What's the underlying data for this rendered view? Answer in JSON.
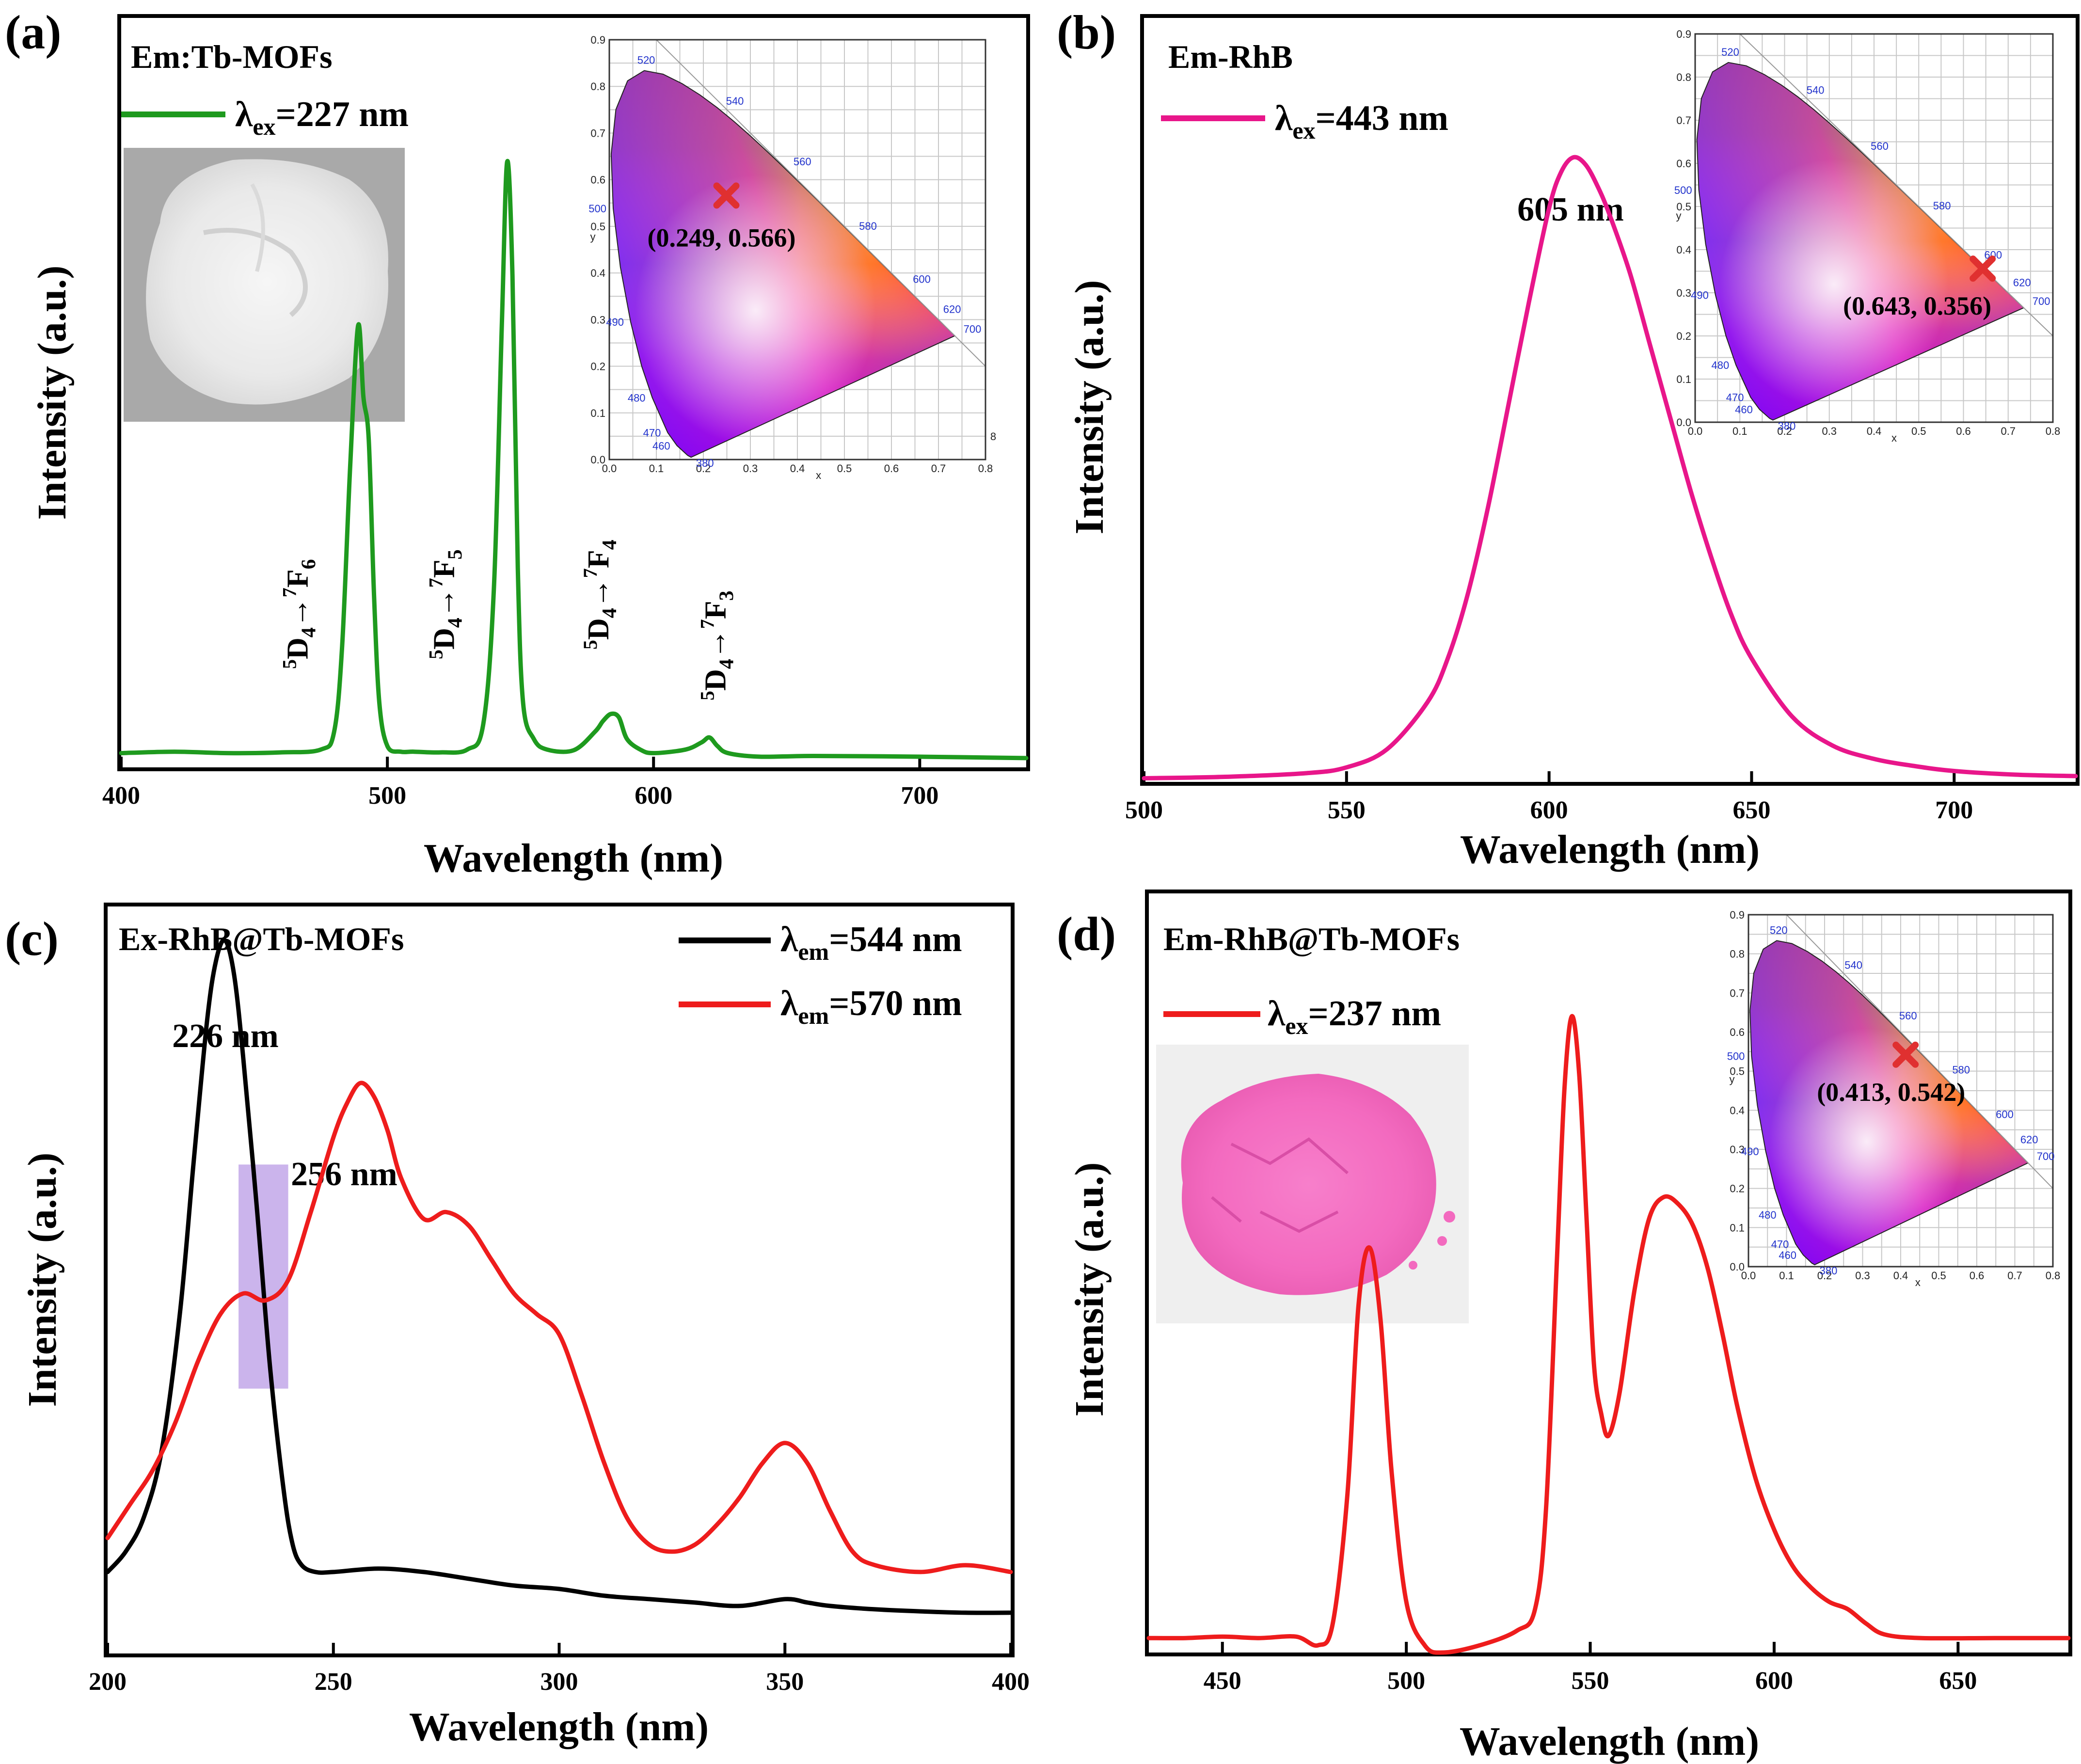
{
  "chart_data": [
    {
      "panel": "(a)",
      "type": "line",
      "title": "Em:Tb-MOFs",
      "xlabel": "Wavelength (nm)",
      "ylabel": "Intensity (a.u.)",
      "xlim": [
        400,
        740
      ],
      "ylim": [
        0,
        1.05
      ],
      "xticks": [
        400,
        500,
        600,
        700
      ],
      "series": [
        {
          "name": "λex=227 nm",
          "legend_main": "λ",
          "legend_sub": "ex",
          "legend_rest": "=227 nm",
          "color": "#1e9a1e",
          "x": [
            400,
            420,
            440,
            460,
            475,
            480,
            483,
            486,
            489,
            491,
            493,
            495,
            497,
            500,
            505,
            510,
            520,
            530,
            536,
            540,
            543,
            545,
            547,
            549,
            551,
            555,
            560,
            570,
            578,
            581,
            584,
            587,
            590,
            595,
            600,
            612,
            618,
            621,
            624,
            628,
            640,
            660,
            700,
            740
          ],
          "y": [
            0.02,
            0.022,
            0.02,
            0.021,
            0.025,
            0.05,
            0.17,
            0.42,
            0.62,
            0.52,
            0.46,
            0.24,
            0.09,
            0.03,
            0.022,
            0.022,
            0.021,
            0.025,
            0.06,
            0.25,
            0.62,
            0.85,
            0.69,
            0.28,
            0.09,
            0.04,
            0.025,
            0.024,
            0.05,
            0.065,
            0.075,
            0.07,
            0.04,
            0.025,
            0.02,
            0.025,
            0.035,
            0.042,
            0.03,
            0.02,
            0.015,
            0.016,
            0.015,
            0.013
          ]
        }
      ],
      "annotations": [
        {
          "label": "5D4→7F6",
          "x": 470
        },
        {
          "label": "5D4→7F5",
          "x": 525
        },
        {
          "label": "5D4→7F4",
          "x": 583
        },
        {
          "label": "5D4→7F3",
          "x": 627
        }
      ],
      "cie": {
        "coord_label": "(0.249, 0.566)",
        "x": 0.249,
        "y": 0.566,
        "extra_tick": "8"
      }
    },
    {
      "panel": "(b)",
      "type": "line",
      "title": "Em-RhB",
      "xlabel": "Wavelength (nm)",
      "ylabel": "Intensity (a.u.)",
      "xlim": [
        500,
        730
      ],
      "ylim": [
        0,
        1.05
      ],
      "xticks": [
        500,
        550,
        600,
        650,
        700
      ],
      "peak_label": "605 nm",
      "series": [
        {
          "name": "λex=443 nm",
          "legend_main": "λ",
          "legend_sub": "ex",
          "legend_rest": "=443 nm",
          "color": "#e8168a",
          "x": [
            500,
            520,
            540,
            550,
            560,
            570,
            575,
            580,
            585,
            590,
            595,
            600,
            603,
            606,
            609,
            612,
            615,
            620,
            625,
            630,
            635,
            640,
            645,
            650,
            660,
            670,
            680,
            690,
            700,
            715,
            730
          ],
          "y": [
            0.005,
            0.007,
            0.012,
            0.02,
            0.045,
            0.11,
            0.17,
            0.26,
            0.38,
            0.52,
            0.66,
            0.79,
            0.84,
            0.86,
            0.85,
            0.82,
            0.78,
            0.7,
            0.6,
            0.5,
            0.4,
            0.31,
            0.23,
            0.17,
            0.09,
            0.05,
            0.032,
            0.022,
            0.015,
            0.01,
            0.008
          ]
        }
      ],
      "cie": {
        "coord_label": "(0.643, 0.356)",
        "x": 0.643,
        "y": 0.356
      }
    },
    {
      "panel": "(c)",
      "type": "line",
      "title": "Ex-RhB@Tb-MOFs",
      "xlabel": "Wavelength (nm)",
      "ylabel": "Intensity (a.u.)",
      "xlim": [
        200,
        400
      ],
      "ylim": [
        0,
        1.1
      ],
      "xticks": [
        200,
        250,
        300,
        350,
        400
      ],
      "peak_labels": [
        "226 nm",
        "256 nm"
      ],
      "highlight_x": [
        229,
        240
      ],
      "series": [
        {
          "name": "λem=544 nm",
          "legend_main": "λ",
          "legend_sub": "em",
          "legend_rest": "=544 nm",
          "color": "#000000",
          "x": [
            200,
            204,
            208,
            212,
            216,
            219,
            222,
            224,
            226,
            228,
            230,
            233,
            236,
            239,
            241,
            243,
            246,
            250,
            260,
            270,
            280,
            290,
            300,
            310,
            320,
            330,
            340,
            350,
            355,
            360,
            370,
            380,
            390,
            400
          ],
          "y": [
            0.12,
            0.15,
            0.2,
            0.3,
            0.5,
            0.72,
            0.93,
            1.02,
            1.05,
            1.0,
            0.88,
            0.66,
            0.42,
            0.24,
            0.16,
            0.13,
            0.12,
            0.12,
            0.125,
            0.12,
            0.11,
            0.1,
            0.095,
            0.085,
            0.08,
            0.075,
            0.07,
            0.08,
            0.075,
            0.07,
            0.065,
            0.062,
            0.06,
            0.06
          ]
        },
        {
          "name": "λem=570 nm",
          "legend_main": "λ",
          "legend_sub": "em",
          "legend_rest": "=570 nm",
          "color": "#ee1c1c",
          "x": [
            200,
            205,
            210,
            215,
            220,
            225,
            230,
            235,
            240,
            245,
            250,
            253,
            256,
            259,
            262,
            265,
            270,
            275,
            280,
            285,
            290,
            295,
            300,
            305,
            310,
            315,
            320,
            325,
            330,
            335,
            340,
            345,
            350,
            355,
            360,
            365,
            370,
            380,
            390,
            400
          ],
          "y": [
            0.17,
            0.22,
            0.27,
            0.34,
            0.43,
            0.5,
            0.53,
            0.52,
            0.55,
            0.65,
            0.76,
            0.81,
            0.84,
            0.82,
            0.77,
            0.7,
            0.64,
            0.65,
            0.63,
            0.58,
            0.53,
            0.5,
            0.47,
            0.38,
            0.28,
            0.2,
            0.16,
            0.15,
            0.16,
            0.19,
            0.23,
            0.28,
            0.31,
            0.28,
            0.21,
            0.15,
            0.13,
            0.12,
            0.13,
            0.12
          ]
        }
      ]
    },
    {
      "panel": "(d)",
      "type": "line",
      "title": "Em-RhB@Tb-MOFs",
      "xlabel": "Wavelength (nm)",
      "ylabel": "Intensity (a.u.)",
      "xlim": [
        430,
        680
      ],
      "ylim": [
        0,
        1.05
      ],
      "xticks": [
        450,
        500,
        550,
        600,
        650
      ],
      "series": [
        {
          "name": "λex=237 nm",
          "legend_main": "λ",
          "legend_sub": "ex",
          "legend_rest": "=237 nm",
          "color": "#ee1c1c",
          "x": [
            430,
            440,
            450,
            460,
            470,
            476,
            480,
            484,
            487,
            490,
            493,
            496,
            500,
            505,
            510,
            520,
            530,
            535,
            538,
            541,
            543,
            545,
            547,
            549,
            551,
            553,
            555,
            558,
            562,
            566,
            570,
            574,
            578,
            582,
            586,
            590,
            595,
            600,
            605,
            610,
            615,
            620,
            625,
            630,
            640,
            660,
            680
          ],
          "y": [
            0.02,
            0.02,
            0.022,
            0.02,
            0.022,
            0.01,
            0.04,
            0.22,
            0.48,
            0.56,
            0.46,
            0.25,
            0.07,
            0.01,
            0.0,
            0.01,
            0.03,
            0.06,
            0.2,
            0.55,
            0.78,
            0.88,
            0.8,
            0.6,
            0.4,
            0.33,
            0.3,
            0.36,
            0.5,
            0.6,
            0.63,
            0.62,
            0.59,
            0.53,
            0.44,
            0.34,
            0.24,
            0.17,
            0.12,
            0.09,
            0.07,
            0.06,
            0.04,
            0.025,
            0.02,
            0.02,
            0.02
          ]
        }
      ],
      "cie": {
        "coord_label": "(0.413, 0.542)",
        "x": 0.413,
        "y": 0.542
      }
    }
  ],
  "panels": {
    "a": {
      "letter": "(a)"
    },
    "b": {
      "letter": "(b)"
    },
    "c": {
      "letter": "(c)"
    },
    "d": {
      "letter": "(d)"
    }
  },
  "cie_common": {
    "x_axis_label": "x",
    "y_axis_label": "y",
    "ticks": [
      "0.0",
      "0.1",
      "0.2",
      "0.3",
      "0.4",
      "0.5",
      "0.6",
      "0.7",
      "0.8",
      "0.9"
    ],
    "wavelengths": [
      "520",
      "540",
      "560",
      "580",
      "600",
      "620",
      "700",
      "500",
      "490",
      "480",
      "470",
      "460",
      "380"
    ]
  },
  "colors": {
    "green": "#1e9a1e",
    "magenta": "#e8168a",
    "red": "#ee1c1c",
    "black": "#000000",
    "highlight": "#b99be6",
    "marker": "#e03030"
  }
}
